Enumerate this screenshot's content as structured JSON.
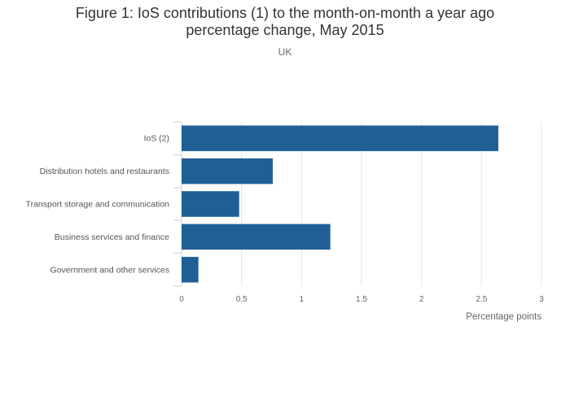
{
  "chart_data": {
    "type": "bar",
    "orientation": "horizontal",
    "title_line1": "Figure 1: IoS contributions (1) to the month-on-month a year ago",
    "title_line2": "percentage change, May 2015",
    "subtitle": "UK",
    "categories": [
      "IoS (2)",
      "Distribution hotels and restaurants",
      "Transport storage and communication",
      "Business services and finance",
      "Government and other services"
    ],
    "values": [
      2.64,
      0.76,
      0.48,
      1.24,
      0.14
    ],
    "xlabel": "Percentage points",
    "xlim": [
      0,
      3
    ],
    "xticks": [
      "0",
      "0.5",
      "1",
      "1.5",
      "2",
      "2.5",
      "3"
    ],
    "bar_color": "#1f5f96",
    "grid": true
  }
}
